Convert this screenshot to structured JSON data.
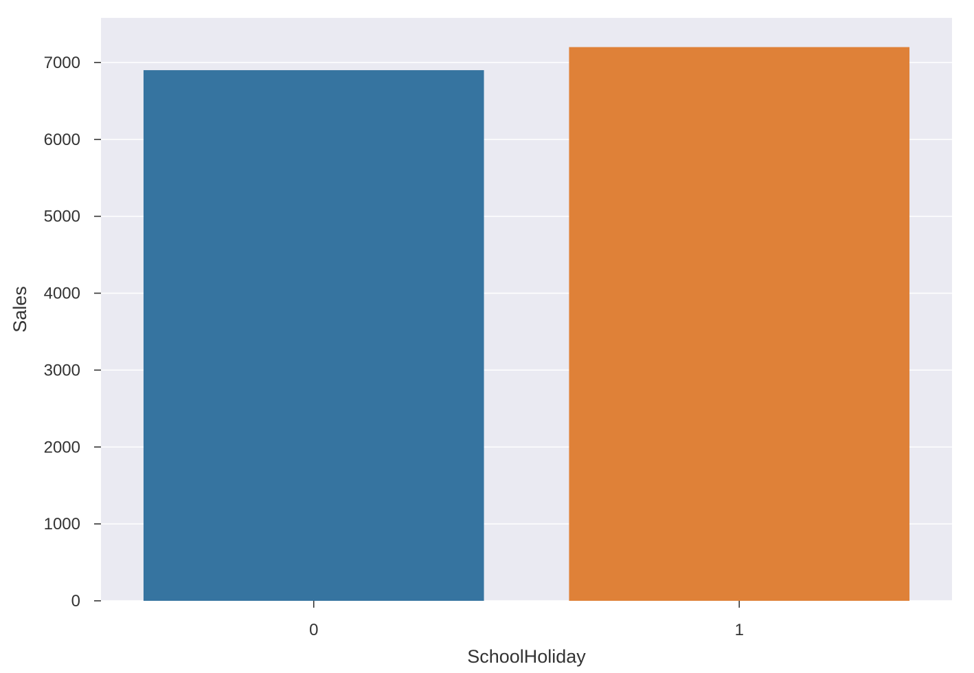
{
  "chart_data": {
    "type": "bar",
    "categories": [
      "0",
      "1"
    ],
    "values": [
      6900,
      7200
    ],
    "colors": [
      "#3674a0",
      "#df8138"
    ],
    "title": "",
    "xlabel": "SchoolHoliday",
    "ylabel": "Sales",
    "ylim": [
      0,
      7580
    ],
    "yticks": [
      0,
      1000,
      2000,
      3000,
      4000,
      5000,
      6000,
      7000
    ],
    "ytick_labels": [
      "0",
      "1000",
      "2000",
      "3000",
      "4000",
      "5000",
      "6000",
      "7000"
    ],
    "grid": true,
    "plot_background": "#eaeaf2",
    "grid_color": "#ffffff"
  }
}
